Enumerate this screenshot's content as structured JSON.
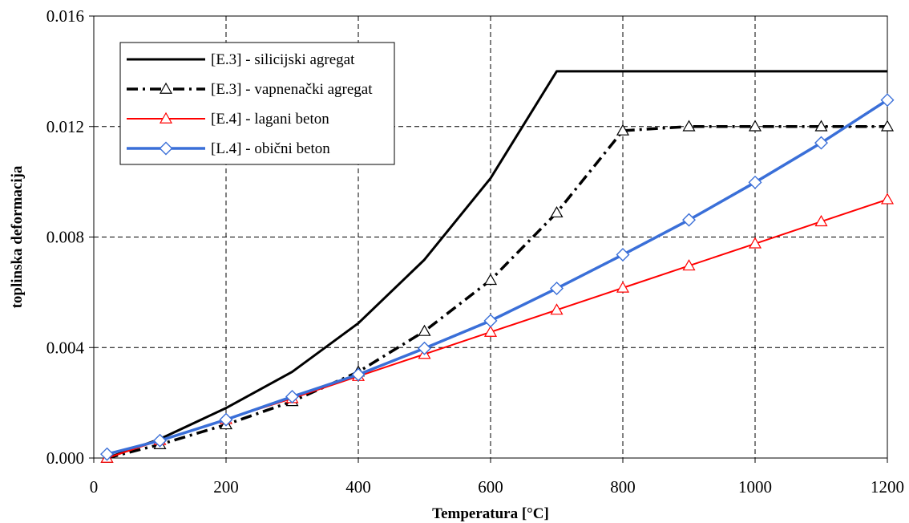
{
  "chart_data": {
    "type": "line",
    "xlabel": "Temperatura [°C]",
    "ylabel": "toplinska deformacija",
    "xlim": [
      0,
      1200
    ],
    "ylim": [
      0,
      0.016
    ],
    "x_ticks": [
      "0",
      "200",
      "400",
      "600",
      "800",
      "1000",
      "1200"
    ],
    "y_ticks": [
      "0.000",
      "0.004",
      "0.008",
      "0.012",
      "0.016"
    ],
    "x_tick_values": [
      0,
      200,
      400,
      600,
      800,
      1000,
      1200
    ],
    "y_tick_values": [
      0,
      0.004,
      0.008,
      0.012,
      0.016
    ],
    "grid": true,
    "legend_position": "top-left",
    "series": [
      {
        "name": "[E.3] - silicijski agregat",
        "color": "#000000",
        "line_style": "solid",
        "marker": "none",
        "x": [
          20,
          100,
          200,
          300,
          400,
          500,
          600,
          700,
          800,
          900,
          1000,
          1100,
          1200
        ],
        "y": [
          0.0,
          0.00069,
          0.00181,
          0.00312,
          0.00488,
          0.00718,
          0.01013,
          0.014,
          0.014,
          0.014,
          0.014,
          0.014,
          0.014
        ]
      },
      {
        "name": "[E.3] - vapnenački agregat",
        "color": "#000000",
        "line_style": "dashdot",
        "marker": "triangle",
        "x": [
          20,
          100,
          200,
          300,
          400,
          500,
          600,
          700,
          800,
          900,
          1000,
          1100,
          1200
        ],
        "y": [
          0.0,
          0.00049,
          0.00121,
          0.00205,
          0.00312,
          0.00459,
          0.00644,
          0.00888,
          0.01185,
          0.012,
          0.012,
          0.012,
          0.012
        ]
      },
      {
        "name": "[E.4] - lagani beton",
        "color": "#ff0000",
        "line_style": "solid",
        "marker": "triangle",
        "x": [
          20,
          100,
          200,
          300,
          400,
          500,
          600,
          700,
          800,
          900,
          1000,
          1100,
          1200
        ],
        "y": [
          0.0,
          0.00064,
          0.0014,
          0.00216,
          0.00296,
          0.00376,
          0.00456,
          0.00536,
          0.00616,
          0.00696,
          0.00776,
          0.00856,
          0.00936
        ]
      },
      {
        "name": "[L.4] - obični beton",
        "color": "#3a6fd8",
        "line_style": "solid",
        "marker": "diamond",
        "x": [
          20,
          100,
          200,
          300,
          400,
          500,
          600,
          700,
          800,
          900,
          1000,
          1100,
          1200
        ],
        "y": [
          0.00014,
          0.00063,
          0.00139,
          0.00222,
          0.00302,
          0.00397,
          0.00497,
          0.00614,
          0.00736,
          0.00862,
          0.00998,
          0.01141,
          0.01296
        ]
      }
    ]
  }
}
